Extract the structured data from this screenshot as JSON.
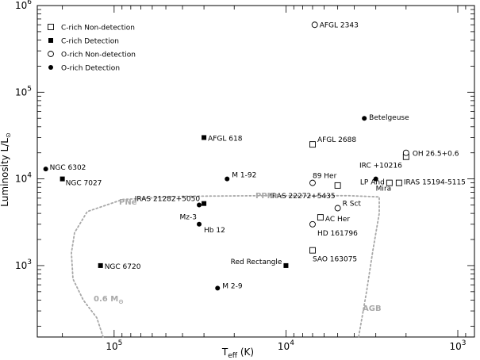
{
  "chart_data": {
    "type": "scatter",
    "xlabel": "T",
    "xlabel_sub": "eff",
    "xlabel_unit": "(K)",
    "ylabel": "Luminosity L/L",
    "ylabel_sub": "⊙",
    "x_scale": "log",
    "x_reversed": true,
    "y_scale": "log",
    "xlim": [
      280000,
      800
    ],
    "ylim": [
      150,
      1000000
    ],
    "x_ticks": [
      {
        "value": 100000,
        "base": "10",
        "exp": "5"
      },
      {
        "value": 10000,
        "base": "10",
        "exp": "4"
      },
      {
        "value": 1000,
        "base": "10",
        "exp": "3"
      }
    ],
    "y_ticks": [
      {
        "value": 1000,
        "base": "10",
        "exp": "3"
      },
      {
        "value": 10000,
        "base": "10",
        "exp": "4"
      },
      {
        "value": 100000,
        "base": "10",
        "exp": "5"
      },
      {
        "value": 1000000,
        "base": "10",
        "exp": "6"
      }
    ],
    "legend_position": "top-left",
    "legend": [
      {
        "label": "C-rich Non-detection",
        "marker": "open-square"
      },
      {
        "label": "C-rich Detection",
        "marker": "filled-square"
      },
      {
        "label": "O-rich Non-detection",
        "marker": "open-circle"
      },
      {
        "label": "O-rich Detection",
        "marker": "filled-circle"
      }
    ],
    "series": [
      {
        "name": "C-rich Non-detection",
        "marker": "open-square",
        "points": [
          {
            "label": "AFGL 2688",
            "x": 7000,
            "y": 25000
          },
          {
            "label": "IRAS 22272+5435",
            "x": 5000,
            "y": 8400
          },
          {
            "label": "AC Her",
            "x": 6300,
            "y": 3600
          },
          {
            "label": "SAO 163075",
            "x": 7000,
            "y": 1500
          },
          {
            "label": "IRC +10216",
            "x": 2000,
            "y": 18000
          },
          {
            "label": "LP And",
            "x": 2500,
            "y": 9000
          },
          {
            "label": "IRAS 15194-5115",
            "x": 2200,
            "y": 9000
          }
        ]
      },
      {
        "name": "C-rich Detection",
        "marker": "filled-square",
        "points": [
          {
            "label": "NGC 7027",
            "x": 200000,
            "y": 10000
          },
          {
            "label": "AFGL 618",
            "x": 30000,
            "y": 30000
          },
          {
            "label": "IRAS 21282+5050",
            "x": 30000,
            "y": 5200
          },
          {
            "label": "NGC 6720",
            "x": 120000,
            "y": 1000
          },
          {
            "label": "Red Rectangle",
            "x": 10000,
            "y": 1000
          }
        ]
      },
      {
        "name": "O-rich Non-detection",
        "marker": "open-circle",
        "points": [
          {
            "label": "AFGL 2343",
            "x": 6800,
            "y": 600000
          },
          {
            "label": "89 Her",
            "x": 7000,
            "y": 9000
          },
          {
            "label": "R Sct",
            "x": 5000,
            "y": 4600
          },
          {
            "label": "HD 161796",
            "x": 7000,
            "y": 3000
          },
          {
            "label": "OH 26.5+0.6",
            "x": 2000,
            "y": 20000
          }
        ]
      },
      {
        "name": "O-rich Detection",
        "marker": "filled-circle",
        "points": [
          {
            "label": "NGC 6302",
            "x": 250000,
            "y": 13000
          },
          {
            "label": "Betelgeuse",
            "x": 3500,
            "y": 50000
          },
          {
            "label": "M 1-92",
            "x": 22000,
            "y": 10000
          },
          {
            "label": "Mz-3",
            "x": 32000,
            "y": 5000
          },
          {
            "label": "Hb 12",
            "x": 32000,
            "y": 3000
          },
          {
            "label": "M 2-9",
            "x": 25000,
            "y": 550
          },
          {
            "label": "Mira",
            "x": 3000,
            "y": 10000
          }
        ]
      }
    ],
    "annotations": [
      {
        "text": "PNe",
        "color": "#a8a8a8"
      },
      {
        "text": "PPNe",
        "color": "#a8a8a8"
      },
      {
        "text": "AGB",
        "color": "#a8a8a8"
      },
      {
        "text": "0.6 M",
        "sub": "⊙",
        "color": "#a8a8a8"
      }
    ]
  }
}
